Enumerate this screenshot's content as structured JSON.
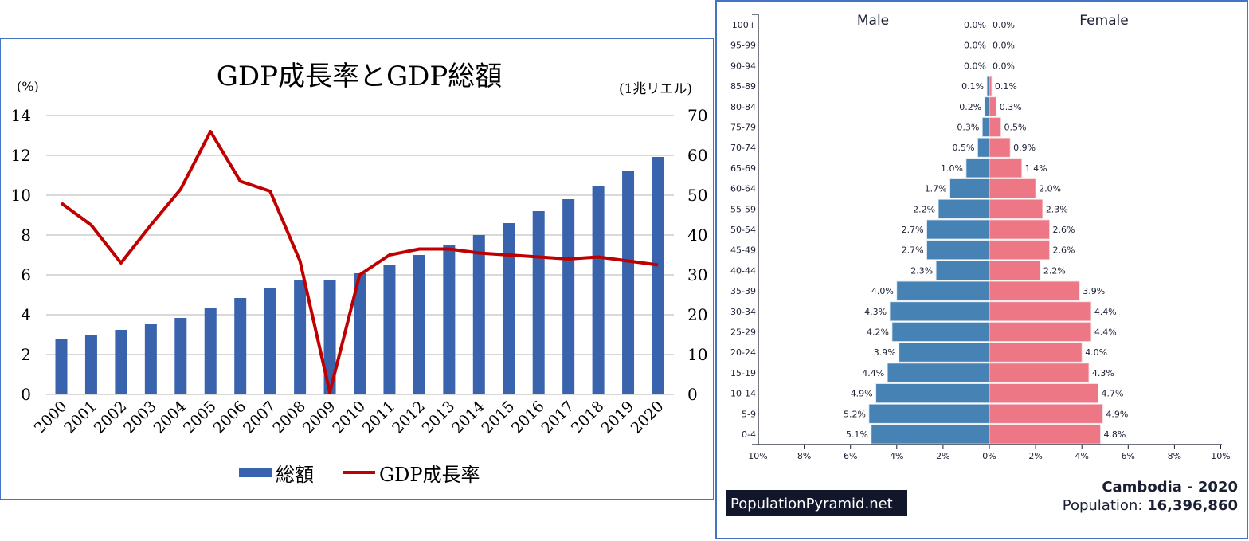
{
  "chart_data": [
    {
      "type": "bar+line",
      "title": "GDP成長率とGDP総額",
      "ylabel_left": "(%)",
      "ylabel_right": "(1兆リエル)",
      "categories": [
        "2000",
        "2001",
        "2002",
        "2003",
        "2004",
        "2005",
        "2006",
        "2007",
        "2008",
        "2009",
        "2010",
        "2011",
        "2012",
        "2013",
        "2014",
        "2015",
        "2016",
        "2017",
        "2018",
        "2019",
        "2020"
      ],
      "y_left": {
        "range": [
          0,
          14
        ],
        "ticks": [
          "0",
          "2",
          "4",
          "6",
          "8",
          "10",
          "12",
          "14"
        ]
      },
      "y_right": {
        "range": [
          0,
          70
        ],
        "ticks": [
          "0",
          "10",
          "20",
          "30",
          "40",
          "50",
          "60",
          "70"
        ]
      },
      "grid": true,
      "legend": "bottom",
      "series": [
        {
          "name": "総額",
          "type": "bar",
          "axis": "right",
          "color": "#3a63ad",
          "values": [
            14.0,
            15.0,
            16.2,
            17.6,
            19.2,
            21.8,
            24.2,
            26.8,
            28.6,
            28.6,
            30.4,
            32.4,
            35.0,
            37.6,
            40.0,
            43.0,
            46.0,
            49.0,
            52.4,
            56.2,
            59.6
          ]
        },
        {
          "name": "GDP成長率",
          "type": "line",
          "axis": "left",
          "color": "#c00000",
          "values": [
            9.6,
            8.5,
            6.6,
            8.5,
            10.3,
            13.2,
            10.7,
            10.2,
            6.7,
            0.1,
            6.0,
            7.0,
            7.3,
            7.3,
            7.1,
            7.0,
            6.9,
            6.8,
            6.9,
            6.7,
            6.5
          ]
        }
      ]
    },
    {
      "type": "population-pyramid",
      "left_label": "Male",
      "right_label": "Female",
      "categories": [
        "100+",
        "95-99",
        "90-94",
        "85-89",
        "80-84",
        "75-79",
        "70-74",
        "65-69",
        "60-64",
        "55-59",
        "50-54",
        "45-49",
        "40-44",
        "35-39",
        "30-34",
        "25-29",
        "20-24",
        "15-19",
        "10-14",
        "5-9",
        "0-4"
      ],
      "x_ticks": [
        "10%",
        "8%",
        "6%",
        "4%",
        "2%",
        "0%",
        "2%",
        "4%",
        "6%",
        "8%",
        "10%"
      ],
      "x_range": [
        -10,
        10
      ],
      "series": [
        {
          "name": "Male",
          "color": "#4682b4",
          "values": [
            0.0,
            0.0,
            0.0,
            0.1,
            0.2,
            0.3,
            0.5,
            1.0,
            1.7,
            2.2,
            2.7,
            2.7,
            2.3,
            4.0,
            4.3,
            4.2,
            3.9,
            4.4,
            4.9,
            5.2,
            5.1
          ],
          "labels": [
            "0.0%",
            "0.0%",
            "0.0%",
            "0.1%",
            "0.2%",
            "0.3%",
            "0.5%",
            "1.0%",
            "1.7%",
            "2.2%",
            "2.7%",
            "2.7%",
            "2.3%",
            "4.0%",
            "4.3%",
            "4.2%",
            "3.9%",
            "4.4%",
            "4.9%",
            "5.2%",
            "5.1%"
          ]
        },
        {
          "name": "Female",
          "color": "#ee7785",
          "values": [
            0.0,
            0.0,
            0.0,
            0.1,
            0.3,
            0.5,
            0.9,
            1.4,
            2.0,
            2.3,
            2.6,
            2.6,
            2.2,
            3.9,
            4.4,
            4.4,
            4.0,
            4.3,
            4.7,
            4.9,
            4.8
          ],
          "labels": [
            "0.0%",
            "0.0%",
            "0.0%",
            "0.1%",
            "0.3%",
            "0.5%",
            "0.9%",
            "1.4%",
            "2.0%",
            "2.3%",
            "2.6%",
            "2.6%",
            "2.2%",
            "3.9%",
            "4.4%",
            "4.4%",
            "4.0%",
            "4.3%",
            "4.7%",
            "4.9%",
            "4.8%"
          ]
        }
      ],
      "watermark": "PopulationPyramid.net",
      "country_year": "Cambodia - 2020",
      "population_label": "Population:",
      "population_value": "16,396,860"
    }
  ]
}
